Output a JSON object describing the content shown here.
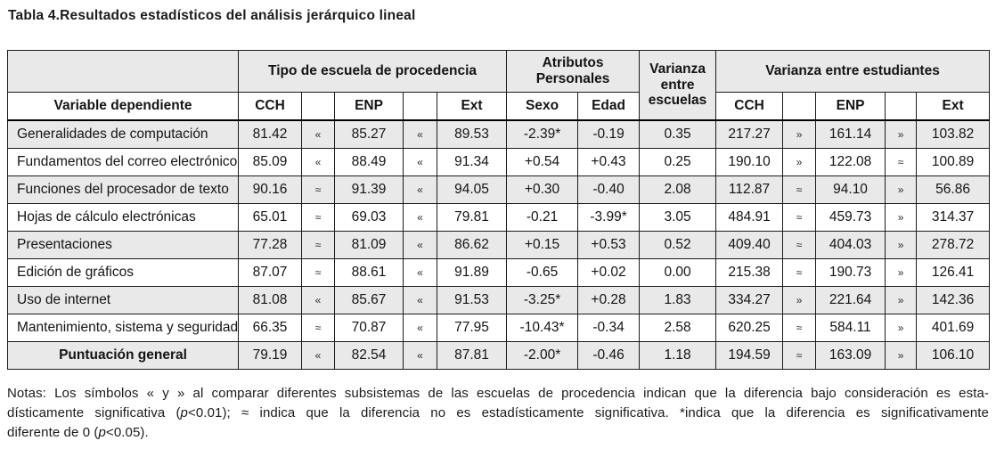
{
  "title": "Tabla 4.Resultados estadísticos del análisis jerárquico lineal",
  "table": {
    "header": {
      "group_tipo": "Tipo de escuela de procedencia",
      "group_atributos": "Atributos Personales",
      "varianza_escuelas": "Varianza entre escuelas",
      "group_varianza_estudiantes": "Varianza entre estudiantes",
      "col_variable": "Variable dependiente",
      "col_cch_procedencia": "CCH",
      "col_enp_procedencia": "ENP",
      "col_ext_procedencia": "Ext",
      "col_sexo": "Sexo",
      "col_edad": "Edad",
      "col_cch_estudiantes": "CCH",
      "col_enp_estudiantes": "ENP",
      "col_ext_estudiantes": "Ext"
    },
    "rows": [
      {
        "variable": "Generalidades de computación",
        "values": [
          "81.42",
          "«",
          "85.27",
          "«",
          "89.53",
          "-2.39*",
          "-0.19",
          "0.35",
          "217.27",
          "»",
          "161.14",
          "»",
          "103.82"
        ],
        "total": false
      },
      {
        "variable": "Fundamentos del correo electrónico",
        "values": [
          "85.09",
          "«",
          "88.49",
          "«",
          "91.34",
          "+0.54",
          "+0.43",
          "0.25",
          "190.10",
          "»",
          "122.08",
          "≈",
          "100.89"
        ],
        "total": false
      },
      {
        "variable": "Funciones del procesador de texto",
        "values": [
          "90.16",
          "≈",
          "91.39",
          "«",
          "94.05",
          "+0.30",
          "-0.40",
          "2.08",
          "112.87",
          "≈",
          "94.10",
          "»",
          "56.86"
        ],
        "total": false
      },
      {
        "variable": "Hojas de cálculo electrónicas",
        "values": [
          "65.01",
          "≈",
          "69.03",
          "«",
          "79.81",
          "-0.21",
          "-3.99*",
          "3.05",
          "484.91",
          "≈",
          "459.73",
          "»",
          "314.37"
        ],
        "total": false
      },
      {
        "variable": "Presentaciones",
        "values": [
          "77.28",
          "≈",
          "81.09",
          "«",
          "86.62",
          "+0.15",
          "+0.53",
          "0.52",
          "409.40",
          "≈",
          "404.03",
          "»",
          "278.72"
        ],
        "total": false
      },
      {
        "variable": "Edición de gráficos",
        "values": [
          "87.07",
          "≈",
          "88.61",
          "«",
          "91.89",
          "-0.65",
          "+0.02",
          "0.00",
          "215.38",
          "≈",
          "190.73",
          "»",
          "126.41"
        ],
        "total": false
      },
      {
        "variable": "Uso de internet",
        "values": [
          "81.08",
          "«",
          "85.67",
          "«",
          "91.53",
          "-3.25*",
          "+0.28",
          "1.83",
          "334.27",
          "»",
          "221.64",
          "»",
          "142.36"
        ],
        "total": false
      },
      {
        "variable": "Mantenimiento, sistema y seguridad",
        "values": [
          "66.35",
          "≈",
          "70.87",
          "«",
          "77.95",
          "-10.43*",
          "-0.34",
          "2.58",
          "620.25",
          "≈",
          "584.11",
          "»",
          "401.69"
        ],
        "total": false
      },
      {
        "variable": "Puntuación general",
        "values": [
          "79.19",
          "«",
          "82.54",
          "«",
          "87.81",
          "-2.00*",
          "-0.46",
          "1.18",
          "194.59",
          "≈",
          "163.09",
          "»",
          "106.10"
        ],
        "total": true
      }
    ],
    "legend_symbols": {
      "significant": "«»",
      "not_significant": "≈",
      "different_from_zero": "*"
    }
  },
  "notes": {
    "line1": "Notas: Los símbolos « y » al comparar diferentes subsistemas de las escuelas de procedencia indican que la diferencia bajo consideración es esta-",
    "line2_pre": "dísticamente significativa (",
    "line2_p": "p",
    "line2_post": "<0.01);  ≈ indica que la diferencia no es estadísticamente significativa. *indica que la diferencia es significativamente",
    "line3_pre": "diferente de 0 (",
    "line3_p": "p",
    "line3_post": "<0.05)."
  }
}
